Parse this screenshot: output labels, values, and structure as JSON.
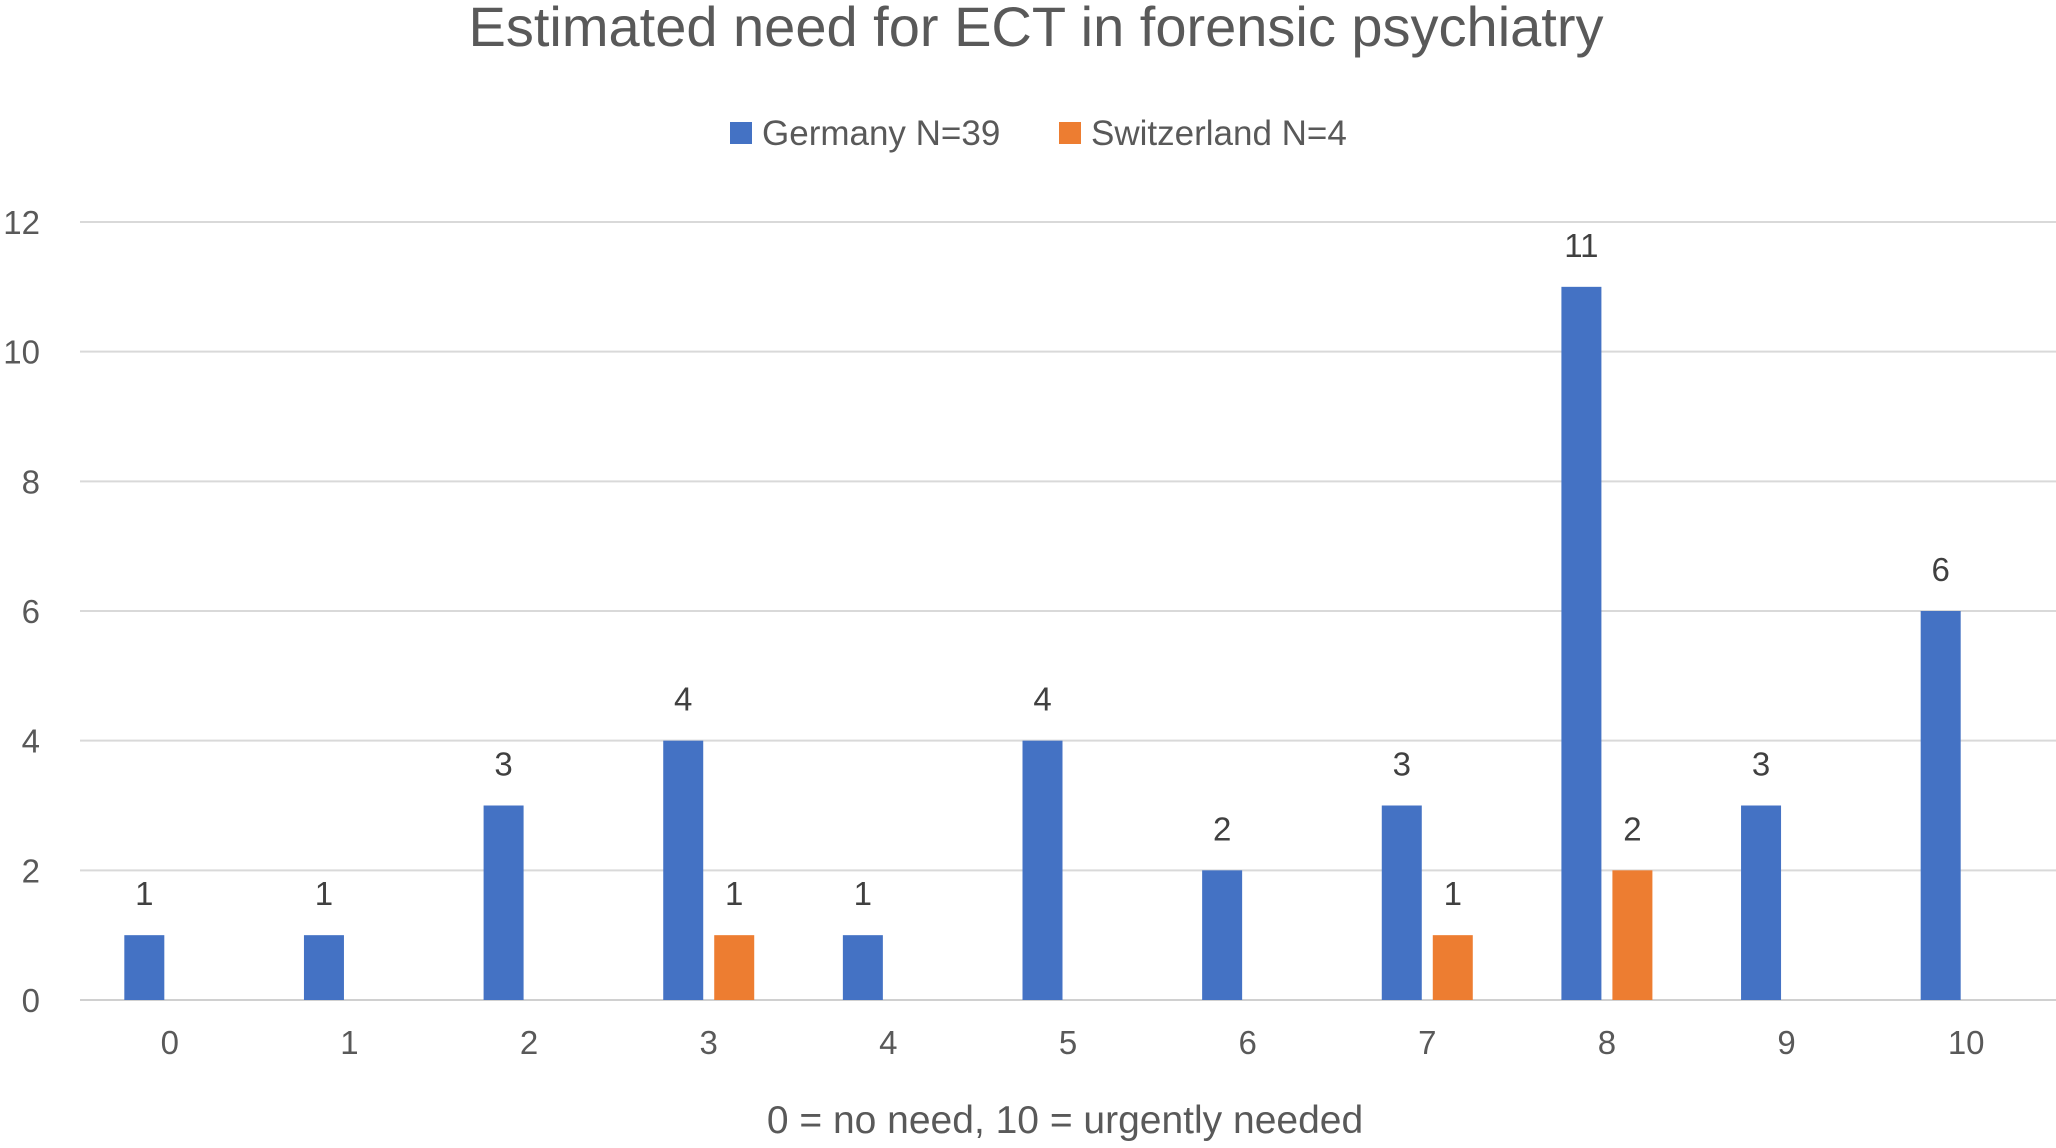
{
  "chart_data": {
    "type": "bar",
    "title": "Estimated need for ECT in forensic psychiatry",
    "xlabel": "0 = no need, 10 = urgently needed",
    "ylabel": "",
    "categories": [
      "0",
      "1",
      "2",
      "3",
      "4",
      "5",
      "6",
      "7",
      "8",
      "9",
      "10"
    ],
    "series": [
      {
        "name": "Germany N=39",
        "color": "#4472C4",
        "values": [
          1,
          1,
          3,
          4,
          1,
          4,
          2,
          3,
          11,
          3,
          6
        ]
      },
      {
        "name": "Switzerland N=4",
        "color": "#ED7D31",
        "values": [
          0,
          0,
          0,
          1,
          0,
          0,
          0,
          1,
          2,
          0,
          0
        ]
      }
    ],
    "ylim": [
      0,
      12
    ],
    "yticks": [
      0,
      2,
      4,
      6,
      8,
      10,
      12
    ],
    "grid": true,
    "legend_position": "top-center",
    "data_labels": true
  }
}
